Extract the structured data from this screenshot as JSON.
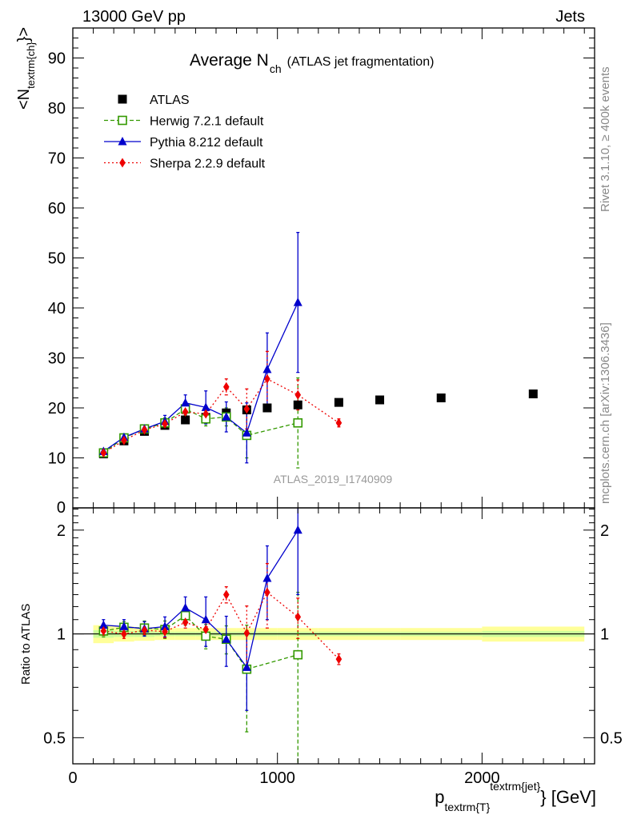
{
  "header": {
    "left_label": "13000 GeV pp",
    "right_label": "Jets"
  },
  "side_labels": {
    "rivet": "Rivet 3.1.10, ≥ 400k events",
    "mcplots": "mcplots.cern.ch [arXiv:1306.3436]"
  },
  "chart_data": [
    {
      "type": "scatter",
      "title": "Average N",
      "title_subscript": "ch",
      "title_suffix": "(ATLAS jet fragmentation)",
      "watermark": "ATLAS_2019_I1740909",
      "ylabel_main": "<N",
      "ylabel_sub": "textrm{ch}",
      "ylabel_end": "}>",
      "xlim": [
        0,
        2550
      ],
      "ylim": [
        0,
        96
      ],
      "y_ticks": [
        10,
        20,
        30,
        40,
        50,
        60,
        70,
        80,
        90
      ],
      "y_tick_labels": [
        "10",
        "20",
        "30",
        "40",
        "50",
        "60",
        "70",
        "80",
        "90"
      ],
      "y_zero_label": "0",
      "grid": false,
      "legend_position": "top-left",
      "series": [
        {
          "name": "ATLAS",
          "color": "#000000",
          "marker": "square-filled",
          "line": "none",
          "x": [
            150,
            250,
            350,
            450,
            550,
            650,
            750,
            850,
            950,
            1100,
            1300,
            1500,
            1800,
            2250
          ],
          "y": [
            10.8,
            13.4,
            15.3,
            16.5,
            17.6,
            18.1,
            19.0,
            19.6,
            20.0,
            20.6,
            21.1,
            21.6,
            22.0,
            22.8
          ],
          "err": [
            0,
            0,
            0,
            0,
            0,
            0,
            0,
            0,
            0,
            0,
            0,
            0,
            0,
            0
          ]
        },
        {
          "name": "Herwig 7.2.1 default",
          "color": "#339900",
          "marker": "square-open",
          "line": "dashed",
          "x": [
            150,
            250,
            350,
            450,
            550,
            650,
            750,
            850,
            1100
          ],
          "y": [
            11.0,
            14.0,
            15.8,
            17.0,
            19.8,
            17.8,
            18.2,
            14.5,
            17.0
          ],
          "err": [
            0.5,
            0.6,
            0.8,
            1.0,
            1.2,
            1.4,
            1.8,
            4.5,
            9.0
          ]
        },
        {
          "name": "Pythia 8.212 default",
          "color": "#0000cc",
          "marker": "triangle-up",
          "line": "solid",
          "x": [
            150,
            250,
            350,
            450,
            550,
            650,
            750,
            850,
            950,
            1100
          ],
          "y": [
            11.3,
            14.1,
            15.8,
            17.3,
            21.0,
            20.1,
            18.2,
            15.0,
            27.7,
            41.1
          ],
          "err": [
            0.5,
            0.7,
            0.8,
            1.2,
            1.6,
            3.3,
            3.0,
            6.0,
            7.3,
            14.0
          ]
        },
        {
          "name": "Sherpa 2.2.9 default",
          "color": "#ee0000",
          "marker": "diamond",
          "line": "dotted",
          "x": [
            150,
            250,
            350,
            450,
            550,
            650,
            750,
            850,
            950,
            1100,
            1300
          ],
          "y": [
            11.0,
            13.5,
            15.6,
            16.8,
            19.2,
            18.8,
            24.2,
            19.8,
            25.8,
            22.6,
            17.0
          ],
          "err": [
            0.4,
            0.5,
            0.6,
            0.8,
            0.9,
            1.0,
            1.6,
            4.0,
            5.5,
            3.0,
            0.8
          ]
        }
      ]
    },
    {
      "type": "scatter",
      "ylabel": "Ratio to ATLAS",
      "xlabel_main": "p",
      "xlabel_sub": "textrm{T}",
      "xlabel_sup": "textrm{jet}",
      "xlabel_end": "} [GeV]",
      "xlim": [
        0,
        2550
      ],
      "ylim": [
        0.42,
        2.32
      ],
      "y_scale": "log",
      "x_ticks": [
        0,
        1000,
        2000
      ],
      "x_tick_labels": [
        "0",
        "1000",
        "2000"
      ],
      "y_ticks": [
        0.5,
        1,
        2
      ],
      "y_tick_labels": [
        "0.5",
        "1",
        "2"
      ],
      "grid": false,
      "reference_band": {
        "x_bins": [
          100,
          200,
          300,
          400,
          500,
          600,
          700,
          800,
          900,
          1000,
          1200,
          1400,
          1600,
          2000,
          2500
        ],
        "yellow_half_width": [
          0.06,
          0.05,
          0.045,
          0.04,
          0.04,
          0.04,
          0.04,
          0.04,
          0.04,
          0.04,
          0.04,
          0.04,
          0.04,
          0.05
        ],
        "green_half_width": [
          0.025,
          0.02,
          0.02,
          0.015,
          0.015,
          0.015,
          0.015,
          0.015,
          0.015,
          0.015,
          0.015,
          0.015,
          0.015,
          0.02
        ],
        "yellow_color": "#ffff99",
        "green_color": "#ccff99"
      },
      "series": [
        {
          "name": "Herwig 7.2.1 default",
          "color": "#339900",
          "marker": "square-open",
          "line": "dashed",
          "x": [
            150,
            250,
            350,
            450,
            550,
            650,
            750,
            850,
            1100
          ],
          "y": [
            1.02,
            1.045,
            1.04,
            1.03,
            1.13,
            0.985,
            0.965,
            0.79,
            0.87
          ],
          "err": [
            0.04,
            0.04,
            0.05,
            0.06,
            0.07,
            0.08,
            0.09,
            0.27,
            0.45
          ]
        },
        {
          "name": "Pythia 8.212 default",
          "color": "#0000cc",
          "marker": "triangle-up",
          "line": "solid",
          "x": [
            150,
            250,
            350,
            450,
            550,
            650,
            750,
            850,
            950,
            1100
          ],
          "y": [
            1.06,
            1.05,
            1.035,
            1.05,
            1.19,
            1.1,
            0.965,
            0.8,
            1.45,
            2.0
          ],
          "err": [
            0.04,
            0.05,
            0.05,
            0.07,
            0.09,
            0.18,
            0.16,
            0.2,
            0.35,
            0.7
          ]
        },
        {
          "name": "Sherpa 2.2.9 default",
          "color": "#ee0000",
          "marker": "diamond",
          "line": "dotted",
          "x": [
            150,
            250,
            350,
            450,
            550,
            650,
            750,
            850,
            950,
            1100,
            1300
          ],
          "y": [
            1.02,
            1.0,
            1.025,
            1.015,
            1.08,
            1.03,
            1.3,
            1.005,
            1.32,
            1.12,
            0.845
          ],
          "err": [
            0.03,
            0.03,
            0.03,
            0.04,
            0.04,
            0.05,
            0.07,
            0.2,
            0.28,
            0.15,
            0.03
          ]
        }
      ]
    }
  ]
}
